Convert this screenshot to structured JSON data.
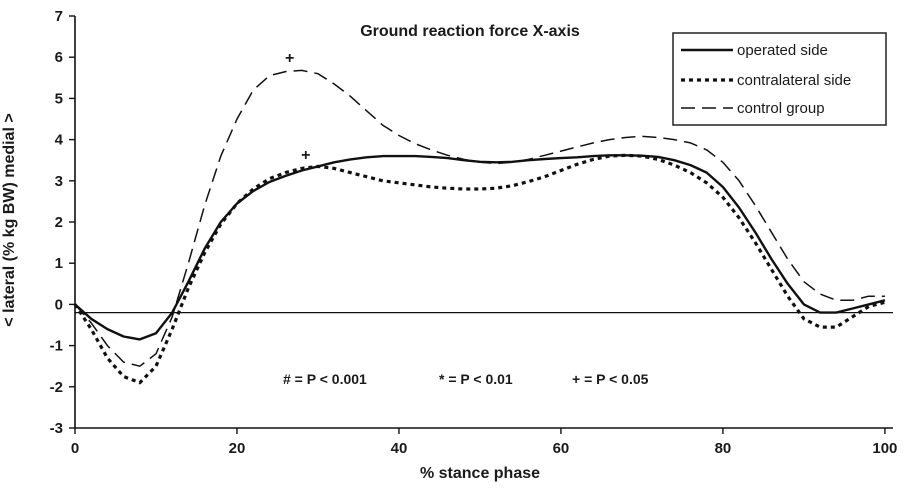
{
  "chart_data": {
    "type": "line",
    "title": "Ground reaction force X-axis",
    "xlabel": "% stance phase",
    "ylabel": "< lateral  (% kg  BW)  medial >",
    "xlim": [
      0,
      101
    ],
    "ylim": [
      -3,
      7
    ],
    "xticks": [
      0,
      20,
      40,
      60,
      80,
      100
    ],
    "yticks": [
      -3,
      -2,
      -1,
      0,
      1,
      2,
      3,
      4,
      5,
      6,
      7
    ],
    "grid": false,
    "legend_position": "top-right",
    "reference_line_y": -0.2,
    "series": [
      {
        "name": "operated side",
        "style": "solid",
        "color": "#111111",
        "x": [
          0,
          2,
          4,
          6,
          8,
          10,
          12,
          14,
          16,
          18,
          20,
          22,
          24,
          26,
          28,
          30,
          32,
          34,
          36,
          38,
          40,
          42,
          44,
          46,
          48,
          50,
          52,
          54,
          56,
          58,
          60,
          62,
          64,
          66,
          68,
          70,
          72,
          74,
          76,
          78,
          80,
          82,
          84,
          86,
          88,
          90,
          92,
          94,
          96,
          98,
          100
        ],
        "y": [
          0,
          -0.35,
          -0.6,
          -0.78,
          -0.85,
          -0.7,
          -0.2,
          0.55,
          1.35,
          2.0,
          2.45,
          2.75,
          2.97,
          3.12,
          3.25,
          3.35,
          3.45,
          3.52,
          3.57,
          3.6,
          3.6,
          3.6,
          3.58,
          3.55,
          3.5,
          3.46,
          3.45,
          3.46,
          3.5,
          3.53,
          3.55,
          3.57,
          3.6,
          3.62,
          3.62,
          3.61,
          3.58,
          3.5,
          3.38,
          3.2,
          2.85,
          2.35,
          1.75,
          1.1,
          0.5,
          0.0,
          -0.2,
          -0.2,
          -0.1,
          0.0,
          0.1
        ]
      },
      {
        "name": "contralateral side",
        "style": "dotted",
        "color": "#111111",
        "x": [
          0,
          2,
          4,
          6,
          8,
          10,
          12,
          14,
          16,
          18,
          20,
          22,
          24,
          26,
          28,
          30,
          32,
          34,
          36,
          38,
          40,
          42,
          44,
          46,
          48,
          50,
          52,
          54,
          56,
          58,
          60,
          62,
          64,
          66,
          68,
          70,
          72,
          74,
          76,
          78,
          80,
          82,
          84,
          86,
          88,
          90,
          92,
          94,
          96,
          98,
          100
        ],
        "y": [
          0,
          -0.6,
          -1.3,
          -1.75,
          -1.9,
          -1.5,
          -0.6,
          0.4,
          1.25,
          1.95,
          2.45,
          2.8,
          3.05,
          3.2,
          3.3,
          3.35,
          3.3,
          3.2,
          3.1,
          3.0,
          2.95,
          2.9,
          2.85,
          2.82,
          2.8,
          2.8,
          2.82,
          2.88,
          2.98,
          3.1,
          3.25,
          3.4,
          3.52,
          3.6,
          3.62,
          3.6,
          3.52,
          3.38,
          3.2,
          2.95,
          2.6,
          2.1,
          1.5,
          0.85,
          0.2,
          -0.35,
          -0.55,
          -0.55,
          -0.3,
          -0.05,
          0.05
        ]
      },
      {
        "name": "control group",
        "style": "dashed",
        "color": "#111111",
        "x": [
          0,
          2,
          4,
          6,
          8,
          10,
          12,
          14,
          16,
          18,
          20,
          22,
          24,
          26,
          28,
          30,
          32,
          34,
          36,
          38,
          40,
          42,
          44,
          46,
          48,
          50,
          52,
          54,
          56,
          58,
          60,
          62,
          64,
          66,
          68,
          70,
          72,
          74,
          76,
          78,
          80,
          82,
          84,
          86,
          88,
          90,
          92,
          94,
          96,
          98,
          100
        ],
        "y": [
          0,
          -0.45,
          -1.0,
          -1.4,
          -1.5,
          -1.2,
          -0.3,
          1.0,
          2.4,
          3.6,
          4.5,
          5.2,
          5.55,
          5.65,
          5.68,
          5.6,
          5.35,
          5.05,
          4.7,
          4.35,
          4.1,
          3.9,
          3.75,
          3.62,
          3.52,
          3.45,
          3.42,
          3.45,
          3.52,
          3.62,
          3.72,
          3.82,
          3.92,
          4.0,
          4.05,
          4.08,
          4.05,
          4.0,
          3.92,
          3.75,
          3.45,
          3.0,
          2.4,
          1.75,
          1.1,
          0.55,
          0.25,
          0.1,
          0.1,
          0.2,
          0.2
        ]
      }
    ],
    "markers": [
      {
        "symbol": "+",
        "x": 26.5,
        "y": 6.0
      },
      {
        "symbol": "+",
        "x": 28.5,
        "y": 3.65
      }
    ],
    "annotations": [
      {
        "text": "# = P < 0.001"
      },
      {
        "text": "* = P < 0.01"
      },
      {
        "text": "+ = P < 0.05"
      }
    ]
  }
}
